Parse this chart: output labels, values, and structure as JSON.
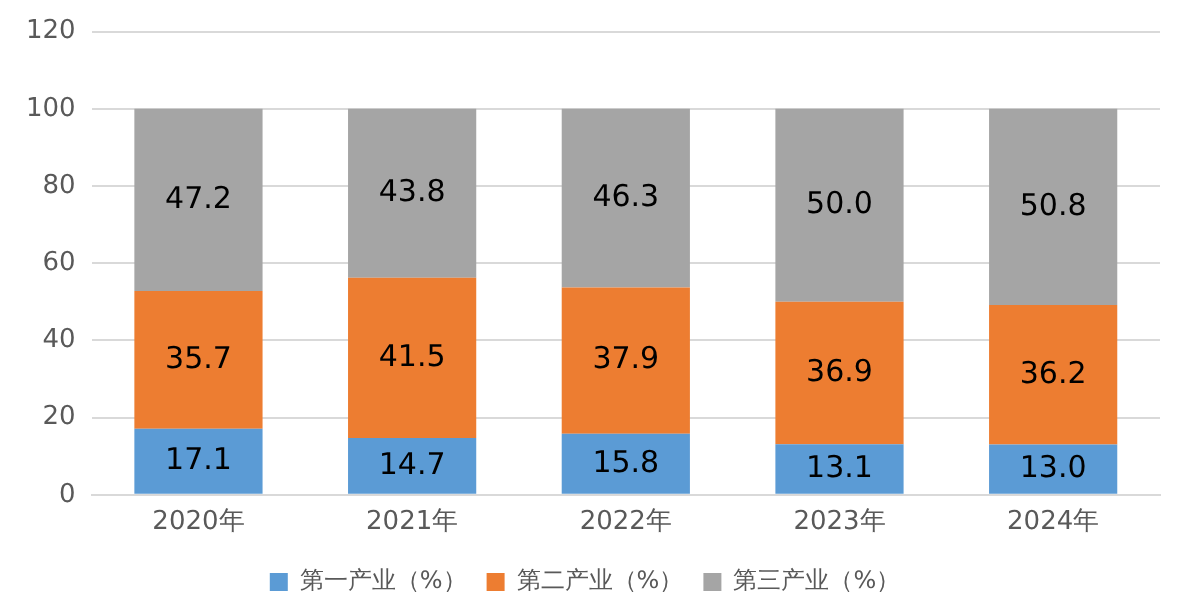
{
  "chart_data": {
    "type": "bar",
    "stacked": true,
    "categories": [
      "2020年",
      "2021年",
      "2022年",
      "2023年",
      "2024年"
    ],
    "series": [
      {
        "name": "第一产业（%）",
        "color": "#5b9bd5",
        "values": [
          17.1,
          14.7,
          15.8,
          13.1,
          13.0
        ],
        "value_labels": [
          "17.1",
          "14.7",
          "15.8",
          "13.1",
          "13.0"
        ]
      },
      {
        "name": "第二产业（%）",
        "color": "#ed7d31",
        "values": [
          35.7,
          41.5,
          37.9,
          36.9,
          36.2
        ],
        "value_labels": [
          "35.7",
          "41.5",
          "37.9",
          "36.9",
          "36.2"
        ]
      },
      {
        "name": "第三产业（%）",
        "color": "#a5a5a5",
        "values": [
          47.2,
          43.8,
          46.3,
          50.0,
          50.8
        ],
        "value_labels": [
          "47.2",
          "43.8",
          "46.3",
          "50.0",
          "50.8"
        ]
      }
    ],
    "ylim": [
      0,
      120
    ],
    "yticks": [
      0,
      20,
      40,
      60,
      80,
      100,
      120
    ],
    "grid": "y",
    "legend": "bottom"
  }
}
